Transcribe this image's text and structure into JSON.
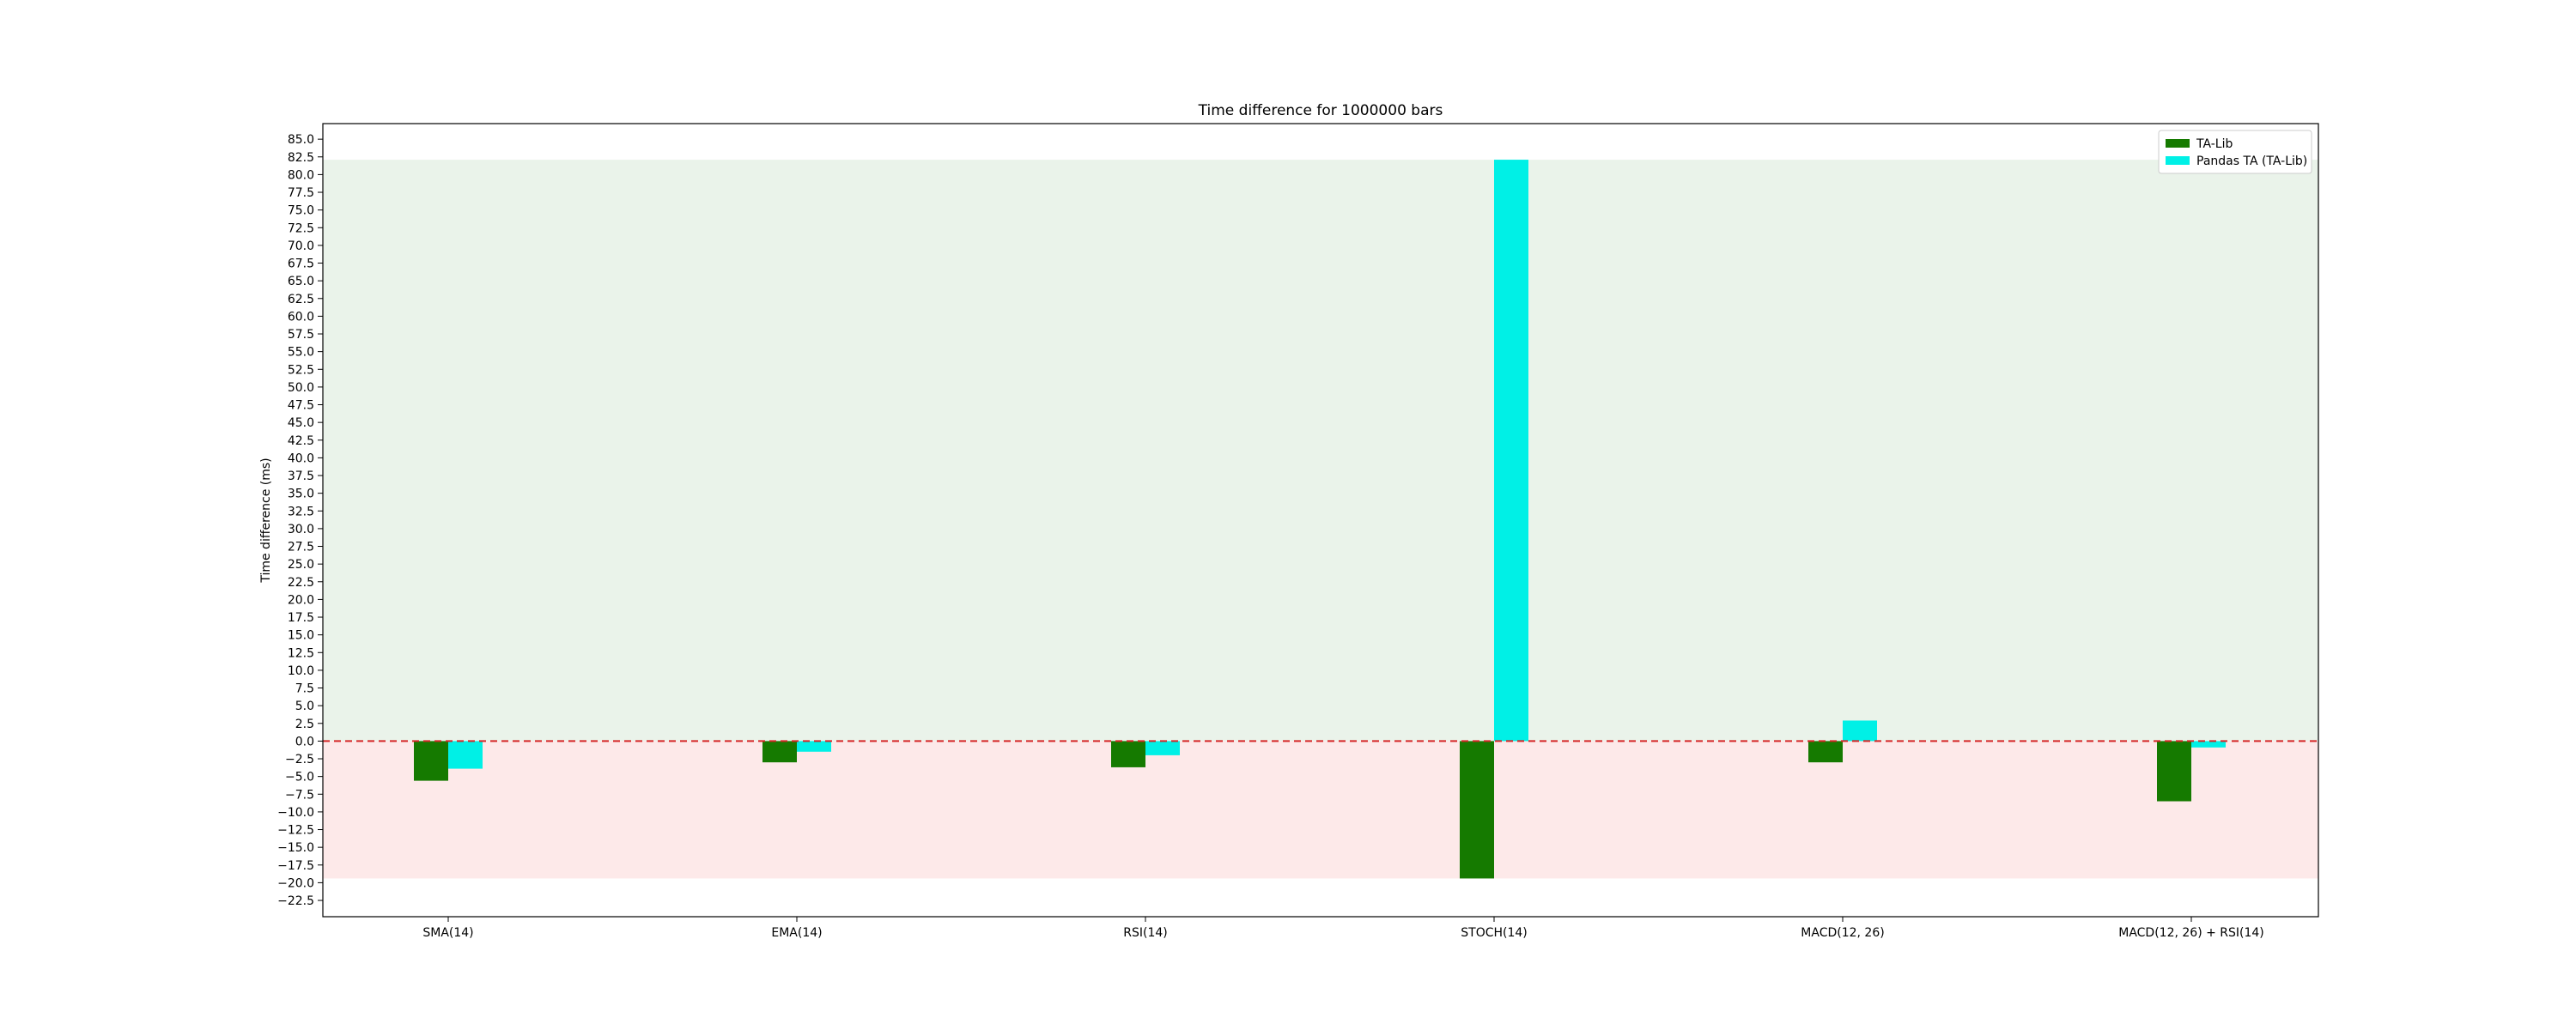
{
  "chart_data": {
    "type": "bar",
    "title": "Time difference for 1000000 bars",
    "ylabel": "Time difference (ms)",
    "xlabel": "",
    "categories": [
      "SMA(14)",
      "EMA(14)",
      "RSI(14)",
      "STOCH(14)",
      "MACD(12, 26)",
      "MACD(12, 26) + RSI(14)"
    ],
    "series": [
      {
        "name": "TA-Lib",
        "color": "#157a00",
        "values": [
          -5.6,
          -3.0,
          -3.7,
          -19.4,
          -3.0,
          -8.5
        ]
      },
      {
        "name": "Pandas TA (TA-Lib)",
        "color": "#00f0e6",
        "values": [
          -3.9,
          -1.5,
          -2.0,
          82.1,
          2.9,
          -0.9
        ]
      }
    ],
    "ylim": [
      -24.8,
      87.2
    ],
    "yticks": [
      -22.5,
      -20.0,
      -17.5,
      -15.0,
      -12.5,
      -10.0,
      -7.5,
      -5.0,
      -2.5,
      0.0,
      2.5,
      5.0,
      7.5,
      10.0,
      12.5,
      15.0,
      17.5,
      20.0,
      22.5,
      25.0,
      27.5,
      30.0,
      32.5,
      35.0,
      37.5,
      40.0,
      42.5,
      45.0,
      47.5,
      50.0,
      52.5,
      55.0,
      57.5,
      60.0,
      62.5,
      65.0,
      67.5,
      70.0,
      72.5,
      75.0,
      77.5,
      80.0,
      82.5,
      85.0
    ],
    "zero_line": {
      "value": 0.0,
      "color": "#d62728",
      "style": "dashed"
    },
    "positive_region": {
      "from": 0.0,
      "to": 82.1,
      "color": "#eaf3ea"
    },
    "negative_region": {
      "from": -19.4,
      "to": 0.0,
      "color": "#fde9e9"
    },
    "legend_position": "top-right",
    "grid": false
  }
}
